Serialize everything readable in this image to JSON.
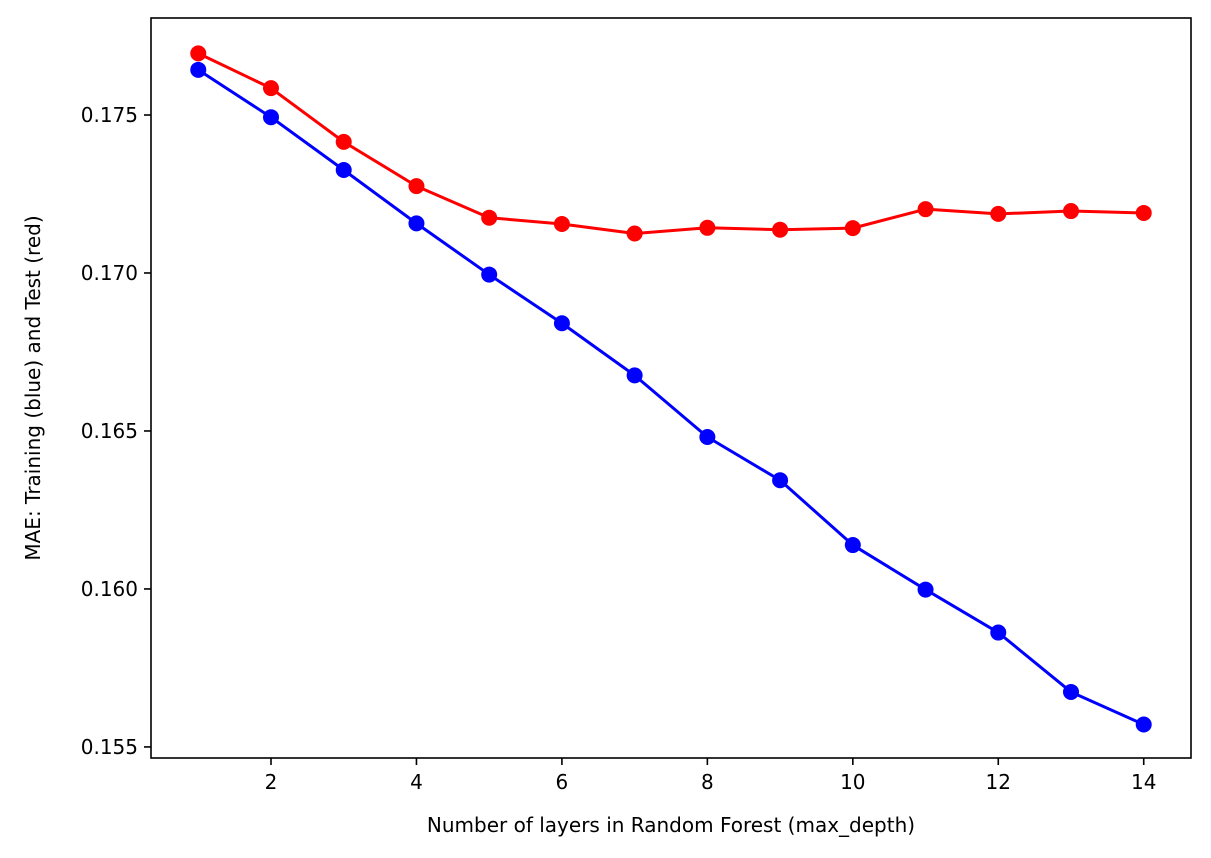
{
  "chart_data": {
    "type": "line",
    "title": "",
    "xlabel": "Number of layers in Random Forest (max_depth)",
    "ylabel": "MAE: Training (blue) and Test (red)",
    "xlim": [
      0.35,
      14.65
    ],
    "ylim": [
      0.15465,
      0.17807
    ],
    "xticks": [
      2,
      4,
      6,
      8,
      10,
      12,
      14
    ],
    "yticks": [
      0.155,
      0.16,
      0.165,
      0.17,
      0.175
    ],
    "ytick_format": 3,
    "grid": false,
    "legend": "none",
    "x": [
      1,
      2,
      3,
      4,
      5,
      6,
      7,
      8,
      9,
      10,
      11,
      12,
      13,
      14
    ],
    "series": [
      {
        "color": "#ff0000",
        "marker": "circle",
        "values": [
          0.17695,
          0.17585,
          0.17415,
          0.17275,
          0.17175,
          0.17155,
          0.17125,
          0.17143,
          0.17137,
          0.17142,
          0.17202,
          0.17187,
          0.17196,
          0.1719
        ]
      },
      {
        "color": "#0000ff",
        "marker": "circle",
        "values": [
          0.17643,
          0.17493,
          0.17326,
          0.17157,
          0.16995,
          0.16841,
          0.16676,
          0.16481,
          0.16344,
          0.16139,
          0.15998,
          0.15862,
          0.15674,
          0.15571
        ]
      }
    ]
  }
}
